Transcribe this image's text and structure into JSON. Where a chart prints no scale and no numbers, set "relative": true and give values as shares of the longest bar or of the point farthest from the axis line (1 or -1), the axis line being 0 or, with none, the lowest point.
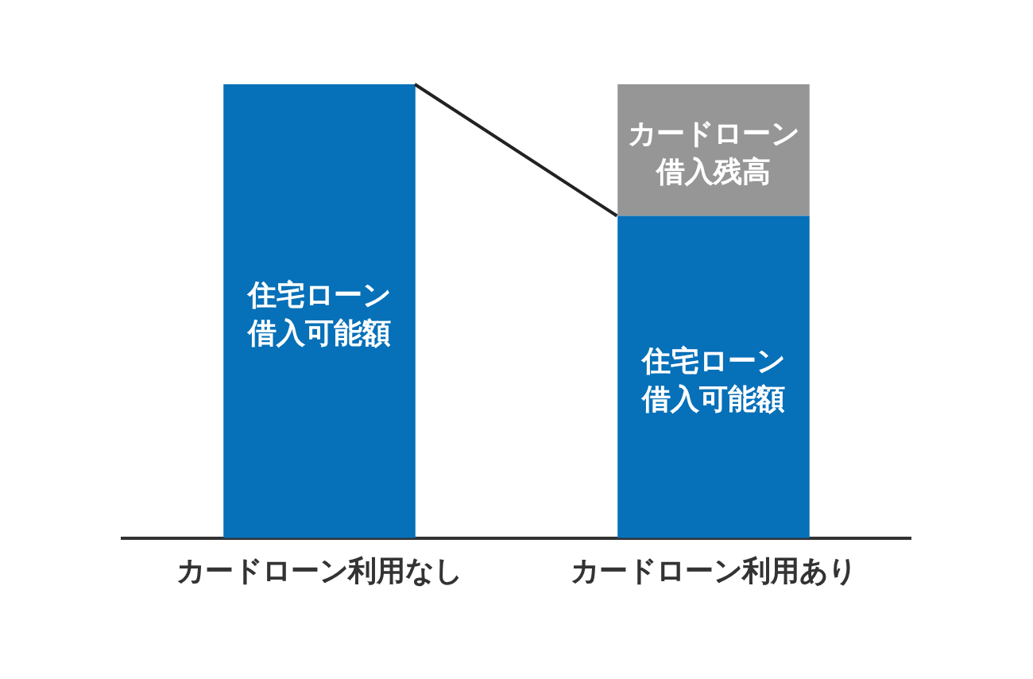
{
  "chart_data": {
    "type": "bar",
    "categories": [
      "カードローン利用なし",
      "カードローン利用あり"
    ],
    "stacked": true,
    "relative": true,
    "legend": false,
    "series": [
      {
        "name": "住宅ローン借入可能額",
        "color": "#0670b8",
        "values": [
          1,
          0.71
        ]
      },
      {
        "name": "カードローン借入残高",
        "color": "#969696",
        "values": [
          null,
          0.29
        ]
      }
    ]
  }
}
